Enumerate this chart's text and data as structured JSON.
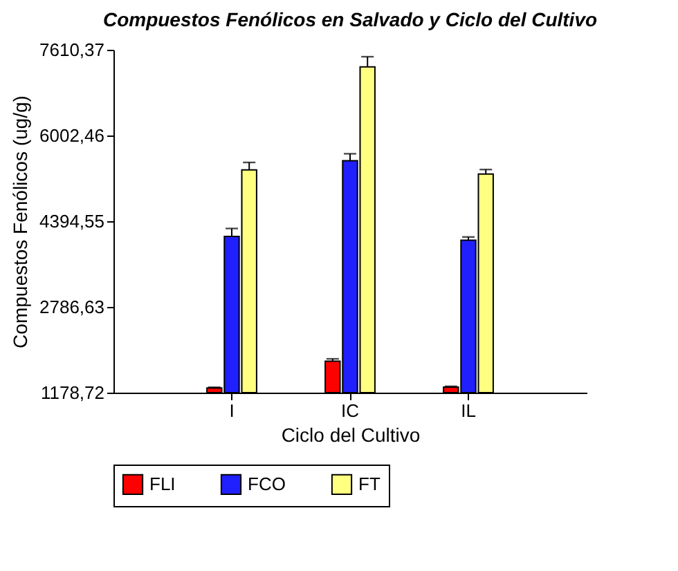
{
  "chart_data": {
    "type": "bar",
    "title": "Compuestos Fenólicos en Salvado y Ciclo del Cultivo",
    "xlabel": "Ciclo del Cultivo",
    "ylabel": "Compuestos Fenólicos (ug/g)",
    "categories": [
      "I",
      "IC",
      "IL"
    ],
    "series": [
      {
        "name": "FLI",
        "color": "#ff0000",
        "values": [
          1265,
          1768,
          1283
        ],
        "errors": [
          15,
          45,
          15
        ]
      },
      {
        "name": "FCO",
        "color": "#2020ff",
        "values": [
          4108,
          5530,
          4039
        ],
        "errors": [
          150,
          130,
          60
        ]
      },
      {
        "name": "FT",
        "color": "#ffff80",
        "values": [
          5357,
          7290,
          5279
        ],
        "errors": [
          140,
          190,
          85
        ]
      }
    ],
    "ylim": [
      1178.72,
      7610.37
    ],
    "yticks": [
      {
        "value": 1178.72,
        "label": "1178,72"
      },
      {
        "value": 2786.63,
        "label": "2786,63"
      },
      {
        "value": 4394.55,
        "label": "4394,55"
      },
      {
        "value": 6002.46,
        "label": "6002,46"
      },
      {
        "value": 7610.37,
        "label": "7610,37"
      }
    ],
    "grid": false,
    "legend": "bottom"
  }
}
